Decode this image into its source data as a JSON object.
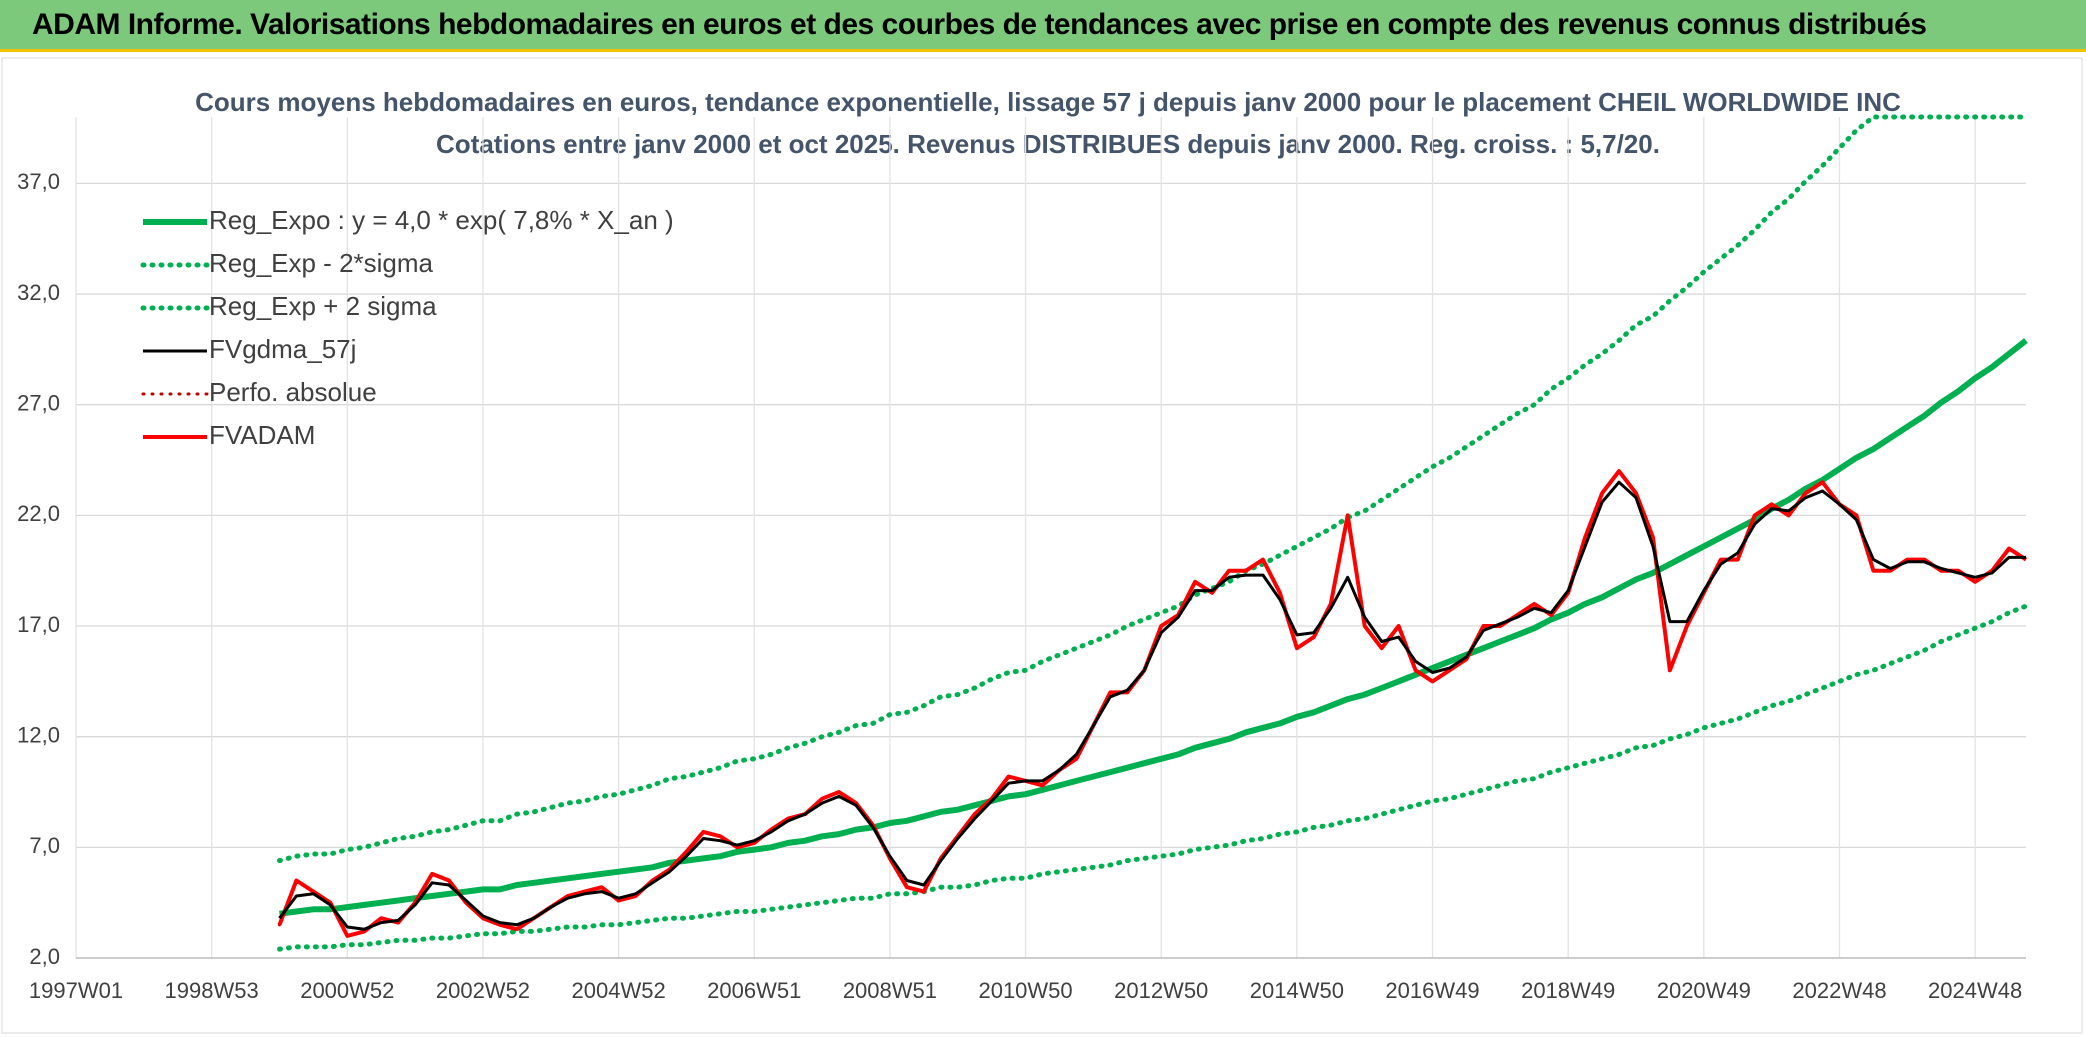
{
  "header": {
    "title": "ADAM Informe. Valorisations hebdomadaires en euros et des courbes de tendances avec prise en compte des revenus connus distribués"
  },
  "chart_data": {
    "type": "line",
    "title": "Cours moyens hebdomadaires en euros, tendance exponentielle, lissage 57 j depuis janv 2000 pour le placement CHEIL WORLDWIDE INC",
    "subtitle": "Cotations entre janv 2000 et oct 2025. Revenus DISTRIBUES depuis janv 2000. Reg. croiss. : 5,7/20.",
    "categories": [
      "1997W01",
      null,
      null,
      null,
      null,
      null,
      null,
      null,
      "1998W53",
      null,
      null,
      null,
      null,
      null,
      null,
      null,
      "2000W52",
      null,
      null,
      null,
      null,
      null,
      null,
      null,
      "2002W52",
      null,
      null,
      null,
      null,
      null,
      null,
      null,
      "2004W52",
      null,
      null,
      null,
      null,
      null,
      null,
      null,
      "2006W51",
      null,
      null,
      null,
      null,
      null,
      null,
      null,
      "2008W51",
      null,
      null,
      null,
      null,
      null,
      null,
      null,
      "2010W50",
      null,
      null,
      null,
      null,
      null,
      null,
      null,
      "2012W50",
      null,
      null,
      null,
      null,
      null,
      null,
      null,
      "2014W50",
      null,
      null,
      null,
      null,
      null,
      null,
      null,
      "2016W49",
      null,
      null,
      null,
      null,
      null,
      null,
      null,
      "2018W49",
      null,
      null,
      null,
      null,
      null,
      null,
      null,
      "2020W49",
      null,
      null,
      null,
      null,
      null,
      null,
      null,
      "2022W48",
      null,
      null,
      null,
      null,
      null,
      null,
      null,
      "2024W48",
      null,
      null,
      null
    ],
    "ylim": [
      2,
      40
    ],
    "yticks": [
      {
        "value": 2,
        "label": "2,0"
      },
      {
        "value": 7,
        "label": "7,0"
      },
      {
        "value": 12,
        "label": "12,0"
      },
      {
        "value": 17,
        "label": "17,0"
      },
      {
        "value": 22,
        "label": "22,0"
      },
      {
        "value": 27,
        "label": "27,0"
      },
      {
        "value": 32,
        "label": "32,0"
      },
      {
        "value": 37,
        "label": "37,0"
      }
    ],
    "grid": true,
    "series": [
      {
        "name": "Reg_Expo : y = 4,0 * exp( 7,8% *  X_an )",
        "color": "#00b050",
        "line_style": "solid",
        "values": [
          null,
          null,
          null,
          null,
          null,
          null,
          null,
          null,
          null,
          null,
          null,
          null,
          4.0,
          4.1,
          4.2,
          4.2,
          4.3,
          4.4,
          4.5,
          4.6,
          4.7,
          4.8,
          4.9,
          5.0,
          5.1,
          5.1,
          5.3,
          5.4,
          5.5,
          5.6,
          5.7,
          5.8,
          5.9,
          6.0,
          6.1,
          6.3,
          6.4,
          6.5,
          6.6,
          6.8,
          6.9,
          7.0,
          7.2,
          7.3,
          7.5,
          7.6,
          7.8,
          7.9,
          8.1,
          8.2,
          8.4,
          8.6,
          8.7,
          8.9,
          9.1,
          9.3,
          9.4,
          9.6,
          9.8,
          10.0,
          10.2,
          10.4,
          10.6,
          10.8,
          11.0,
          11.2,
          11.5,
          11.7,
          11.9,
          12.2,
          12.4,
          12.6,
          12.9,
          13.1,
          13.4,
          13.7,
          13.9,
          14.2,
          14.5,
          14.8,
          15.1,
          15.4,
          15.7,
          16.0,
          16.3,
          16.6,
          16.9,
          17.3,
          17.6,
          18.0,
          18.3,
          18.7,
          19.1,
          19.4,
          19.8,
          20.2,
          20.6,
          21.0,
          21.4,
          21.8,
          22.3,
          22.7,
          23.2,
          23.6,
          24.1,
          24.6,
          25.0,
          25.5,
          26.0,
          26.5,
          27.1,
          27.6,
          28.2,
          28.7,
          29.3,
          29.9
        ]
      },
      {
        "name": "Reg_Exp - 2*sigma",
        "color": "#00b050",
        "line_style": "dotted",
        "values": [
          null,
          null,
          null,
          null,
          null,
          null,
          null,
          null,
          null,
          null,
          null,
          null,
          2.4,
          2.5,
          2.5,
          2.5,
          2.6,
          2.6,
          2.7,
          2.8,
          2.8,
          2.9,
          2.9,
          3.0,
          3.1,
          3.1,
          3.2,
          3.2,
          3.3,
          3.4,
          3.4,
          3.5,
          3.5,
          3.6,
          3.7,
          3.8,
          3.8,
          3.9,
          4.0,
          4.1,
          4.1,
          4.2,
          4.3,
          4.4,
          4.5,
          4.6,
          4.7,
          4.7,
          4.9,
          4.9,
          5.0,
          5.2,
          5.2,
          5.3,
          5.5,
          5.6,
          5.6,
          5.8,
          5.9,
          6.0,
          6.1,
          6.2,
          6.4,
          6.5,
          6.6,
          6.7,
          6.9,
          7.0,
          7.1,
          7.3,
          7.4,
          7.6,
          7.7,
          7.9,
          8.0,
          8.2,
          8.3,
          8.5,
          8.7,
          8.9,
          9.1,
          9.2,
          9.4,
          9.6,
          9.8,
          10.0,
          10.1,
          10.4,
          10.6,
          10.8,
          11.0,
          11.2,
          11.5,
          11.6,
          11.9,
          12.1,
          12.4,
          12.6,
          12.8,
          13.1,
          13.4,
          13.6,
          13.9,
          14.2,
          14.5,
          14.8,
          15.0,
          15.3,
          15.6,
          15.9,
          16.3,
          16.6,
          16.9,
          17.2,
          17.6,
          17.9
        ]
      },
      {
        "name": "Reg_Exp + 2 sigma",
        "color": "#00b050",
        "line_style": "dotted",
        "values": [
          null,
          null,
          null,
          null,
          null,
          null,
          null,
          null,
          null,
          null,
          null,
          null,
          6.4,
          6.6,
          6.7,
          6.7,
          6.9,
          7.0,
          7.2,
          7.4,
          7.5,
          7.7,
          7.8,
          8.0,
          8.2,
          8.2,
          8.5,
          8.6,
          8.8,
          9.0,
          9.1,
          9.3,
          9.4,
          9.6,
          9.8,
          10.1,
          10.2,
          10.4,
          10.6,
          10.9,
          11.0,
          11.2,
          11.5,
          11.7,
          12.0,
          12.2,
          12.5,
          12.6,
          13.0,
          13.1,
          13.4,
          13.8,
          13.9,
          14.2,
          14.6,
          14.9,
          15.0,
          15.4,
          15.7,
          16.0,
          16.3,
          16.6,
          17.0,
          17.3,
          17.6,
          17.9,
          18.4,
          18.7,
          19.0,
          19.5,
          19.8,
          20.2,
          20.6,
          21.0,
          21.4,
          21.9,
          22.2,
          22.7,
          23.2,
          23.7,
          24.2,
          24.6,
          25.1,
          25.6,
          26.1,
          26.6,
          27.0,
          27.7,
          28.2,
          28.8,
          29.3,
          29.9,
          30.6,
          31.0,
          31.7,
          32.3,
          33.0,
          33.6,
          34.2,
          34.9,
          35.7,
          36.3,
          37.1,
          37.8,
          38.6,
          39.4,
          40,
          40,
          40,
          40,
          40,
          40,
          40,
          40,
          40,
          40
        ]
      },
      {
        "name": "FVgdma_57j",
        "color": "#000000",
        "line_style": "solid",
        "values": [
          null,
          null,
          null,
          null,
          null,
          null,
          null,
          null,
          null,
          null,
          null,
          null,
          3.8,
          4.8,
          4.9,
          4.4,
          3.4,
          3.3,
          3.6,
          3.7,
          4.4,
          5.4,
          5.3,
          4.6,
          3.9,
          3.6,
          3.5,
          3.8,
          4.3,
          4.7,
          4.9,
          5.0,
          4.7,
          4.9,
          5.4,
          5.9,
          6.6,
          7.4,
          7.3,
          7.1,
          7.3,
          7.7,
          8.2,
          8.5,
          9.0,
          9.3,
          8.9,
          7.9,
          6.6,
          5.5,
          5.3,
          6.4,
          7.4,
          8.3,
          9.1,
          9.9,
          10.0,
          10.0,
          10.5,
          11.2,
          12.5,
          13.8,
          14.1,
          15.0,
          16.7,
          17.4,
          18.6,
          18.6,
          19.2,
          19.3,
          19.3,
          18.2,
          16.6,
          16.7,
          17.8,
          19.2,
          17.4,
          16.3,
          16.5,
          15.4,
          14.9,
          15.1,
          15.6,
          16.8,
          17.1,
          17.4,
          17.8,
          17.6,
          18.6,
          20.6,
          22.6,
          23.5,
          22.8,
          20.6,
          17.2,
          17.2,
          18.6,
          19.8,
          20.3,
          21.6,
          22.3,
          22.2,
          22.8,
          23.1,
          22.5,
          21.8,
          20.0,
          19.6,
          19.9,
          19.9,
          19.6,
          19.4,
          19.2,
          19.4,
          20.1,
          20.1
        ]
      },
      {
        "name": "Perfo. absolue",
        "color": "#c00000",
        "line_style": "dotted",
        "values": [
          null,
          null,
          null,
          null,
          null,
          null,
          null,
          null,
          null,
          null,
          null,
          null,
          3.5,
          5.5,
          5.0,
          4.5,
          3.0,
          3.2,
          3.8,
          3.6,
          4.5,
          5.8,
          5.5,
          4.5,
          3.8,
          3.5,
          3.3,
          3.8,
          4.3,
          4.8,
          5.0,
          5.2,
          4.6,
          4.8,
          5.5,
          6.0,
          6.8,
          7.7,
          7.5,
          7.0,
          7.2,
          7.8,
          8.3,
          8.5,
          9.2,
          9.5,
          9.0,
          8.0,
          6.5,
          5.2,
          5.0,
          6.5,
          7.5,
          8.5,
          9.2,
          10.2,
          10.0,
          9.8,
          10.5,
          11.0,
          12.5,
          14.0,
          14.0,
          15.0,
          17.0,
          17.5,
          19.0,
          18.5,
          19.5,
          19.5,
          20.0,
          18.5,
          16.0,
          16.5,
          18.0,
          22.0,
          17.0,
          16.0,
          17.0,
          15.0,
          14.5,
          15.0,
          15.5,
          17.0,
          17.0,
          17.5,
          18.0,
          17.5,
          18.5,
          21.0,
          23.0,
          24.0,
          23.0,
          21.0,
          15.0,
          17.0,
          18.5,
          20.0,
          20.0,
          22.0,
          22.5,
          22.0,
          23.0,
          23.5,
          22.5,
          22.0,
          19.5,
          19.5,
          20.0,
          20.0,
          19.5,
          19.5,
          19.0,
          19.5,
          20.5,
          20.0
        ]
      },
      {
        "name": "FVADAM",
        "color": "#ff0000",
        "line_style": "solid",
        "values": [
          null,
          null,
          null,
          null,
          null,
          null,
          null,
          null,
          null,
          null,
          null,
          null,
          3.5,
          5.5,
          5.0,
          4.5,
          3.0,
          3.2,
          3.8,
          3.6,
          4.5,
          5.8,
          5.5,
          4.5,
          3.8,
          3.5,
          3.3,
          3.8,
          4.3,
          4.8,
          5.0,
          5.2,
          4.6,
          4.8,
          5.5,
          6.0,
          6.8,
          7.7,
          7.5,
          7.0,
          7.2,
          7.8,
          8.3,
          8.5,
          9.2,
          9.5,
          9.0,
          8.0,
          6.5,
          5.2,
          5.0,
          6.5,
          7.5,
          8.5,
          9.2,
          10.2,
          10.0,
          9.8,
          10.5,
          11.0,
          12.5,
          14.0,
          14.0,
          15.0,
          17.0,
          17.5,
          19.0,
          18.5,
          19.5,
          19.5,
          20.0,
          18.5,
          16.0,
          16.5,
          18.0,
          22.0,
          17.0,
          16.0,
          17.0,
          15.0,
          14.5,
          15.0,
          15.5,
          17.0,
          17.0,
          17.5,
          18.0,
          17.5,
          18.5,
          21.0,
          23.0,
          24.0,
          23.0,
          21.0,
          15.0,
          17.0,
          18.5,
          20.0,
          20.0,
          22.0,
          22.5,
          22.0,
          23.0,
          23.5,
          22.5,
          22.0,
          19.5,
          19.5,
          20.0,
          20.0,
          19.5,
          19.5,
          19.0,
          19.5,
          20.5,
          20.0
        ]
      }
    ]
  }
}
